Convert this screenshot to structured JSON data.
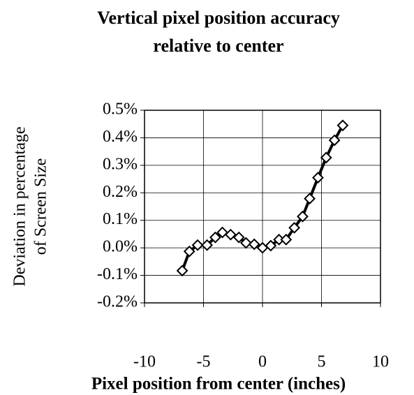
{
  "chart_data": {
    "type": "line",
    "title": [
      "Vertical pixel position accuracy",
      "relative to center"
    ],
    "x_label": "Pixel position from center (inches)",
    "y_label": [
      "Deviation in percentage",
      "of Screen Size"
    ],
    "x": [
      -6.8,
      -6.2,
      -5.5,
      -4.7,
      -4.0,
      -3.4,
      -2.7,
      -2.0,
      -1.4,
      -0.7,
      0,
      0.7,
      1.4,
      2.0,
      2.7,
      3.4,
      4.0,
      4.7,
      5.4,
      6.1,
      6.8
    ],
    "series": [
      {
        "color": "#000000",
        "values": [
          -0.083,
          -0.013,
          0.01,
          0.01,
          0.038,
          0.056,
          0.048,
          0.038,
          0.018,
          0.013,
          0.0,
          0.008,
          0.03,
          0.03,
          0.073,
          0.114,
          0.179,
          0.255,
          0.328,
          0.391,
          0.445
        ]
      }
    ],
    "xlim": [
      -10,
      10
    ],
    "xticks": [
      -10,
      -5,
      0,
      5,
      10
    ],
    "ylim": [
      -0.2,
      0.5
    ],
    "yticks": [
      {
        "value": -0.2,
        "label": "-0.2%"
      },
      {
        "value": -0.1,
        "label": "-0.1%"
      },
      {
        "value": 0,
        "label": "0.0%"
      },
      {
        "value": 0.1,
        "label": "0.1%"
      },
      {
        "value": 0.2,
        "label": "0.2%"
      },
      {
        "value": 0.3,
        "label": "0.3%"
      },
      {
        "value": 0.4,
        "label": "0.4%"
      },
      {
        "value": 0.5,
        "label": "0.5%"
      }
    ],
    "grid": true,
    "marker": "diamond"
  }
}
